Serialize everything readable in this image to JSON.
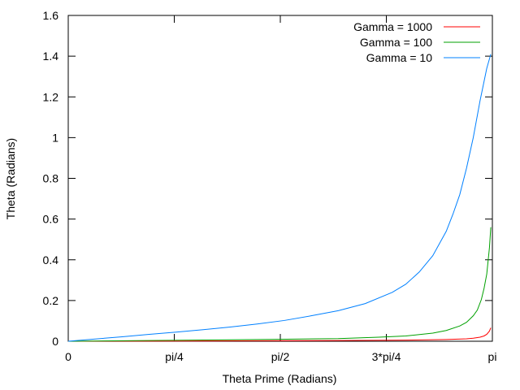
{
  "chart_data": {
    "type": "line",
    "title": "",
    "xlabel": "Theta Prime (Radians)",
    "ylabel": "Theta (Radians)",
    "xlim": [
      0,
      3.14159
    ],
    "ylim": [
      0,
      1.6
    ],
    "x_ticks": [
      {
        "value": 0,
        "label": "0"
      },
      {
        "value": 0.785398,
        "label": "pi/4"
      },
      {
        "value": 1.570796,
        "label": "pi/2"
      },
      {
        "value": 2.356194,
        "label": "3*pi/4"
      },
      {
        "value": 3.14159,
        "label": "pi"
      }
    ],
    "y_ticks": [
      {
        "value": 0,
        "label": "0"
      },
      {
        "value": 0.2,
        "label": "0.2"
      },
      {
        "value": 0.4,
        "label": "0.4"
      },
      {
        "value": 0.6,
        "label": "0.6"
      },
      {
        "value": 0.8,
        "label": "0.8"
      },
      {
        "value": 1.0,
        "label": "1"
      },
      {
        "value": 1.2,
        "label": "1.2"
      },
      {
        "value": 1.4,
        "label": "1.4"
      },
      {
        "value": 1.6,
        "label": "1.6"
      }
    ],
    "grid": false,
    "legend_position": "top-right",
    "series": [
      {
        "name": "Gamma = 1000",
        "color": "#ff0000",
        "x": [
          0,
          0.5,
          1.0,
          1.5,
          2.0,
          2.5,
          2.8,
          2.95,
          3.0,
          3.05,
          3.08,
          3.1,
          3.12,
          3.13
        ],
        "y": [
          0,
          0.0007,
          0.0014,
          0.0023,
          0.0035,
          0.0056,
          0.0085,
          0.012,
          0.015,
          0.02,
          0.026,
          0.034,
          0.05,
          0.066
        ]
      },
      {
        "name": "Gamma = 100",
        "color": "#00a000",
        "x": [
          0,
          0.5,
          1.0,
          1.5,
          2.0,
          2.3,
          2.5,
          2.7,
          2.8,
          2.9,
          2.95,
          3.0,
          3.03,
          3.06,
          3.08,
          3.1,
          3.12,
          3.13
        ],
        "y": [
          0,
          0.003,
          0.006,
          0.009,
          0.013,
          0.02,
          0.026,
          0.04,
          0.053,
          0.075,
          0.093,
          0.125,
          0.153,
          0.205,
          0.26,
          0.33,
          0.46,
          0.56
        ]
      },
      {
        "name": "Gamma = 10",
        "color": "#0080ff",
        "x": [
          0,
          0.2,
          0.4,
          0.6,
          0.8,
          1.0,
          1.2,
          1.4,
          1.6,
          1.8,
          2.0,
          2.2,
          2.4,
          2.5,
          2.6,
          2.7,
          2.8,
          2.85,
          2.9,
          2.95,
          3.0,
          3.05,
          3.1,
          3.13
        ],
        "y": [
          0,
          0.011,
          0.022,
          0.034,
          0.045,
          0.057,
          0.07,
          0.085,
          0.102,
          0.125,
          0.15,
          0.185,
          0.24,
          0.28,
          0.34,
          0.42,
          0.54,
          0.625,
          0.72,
          0.85,
          1.0,
          1.18,
          1.34,
          1.41
        ]
      }
    ]
  }
}
